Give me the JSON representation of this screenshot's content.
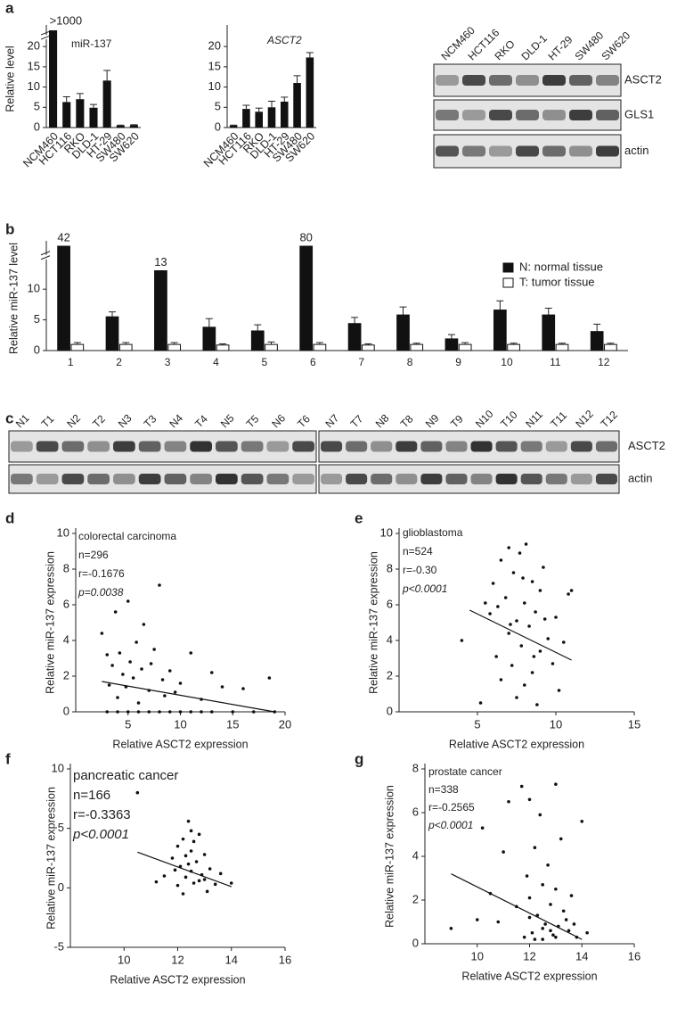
{
  "panel_labels": [
    "a",
    "b",
    "c",
    "d",
    "e",
    "f",
    "g"
  ],
  "chart_data": [
    {
      "type": "bar",
      "y_label": "Relative level",
      "annotations": [
        "miR-137"
      ],
      "categories": [
        "NCM460",
        "HCT116",
        "RKO",
        "DLD-1",
        "HT-29",
        "SW480",
        "SW620"
      ],
      "values": [
        1000,
        6.3,
        7,
        4.9,
        11.6,
        0.5,
        0.6
      ],
      "errors": [
        0,
        1.3,
        1.4,
        0.8,
        2.5,
        0.1,
        0.1
      ],
      "value_labels": [
        ">1000",
        null,
        null,
        null,
        null,
        null,
        null
      ],
      "color": "#111111",
      "ylim": [
        0,
        24
      ],
      "axis_break": 22,
      "yticks": [
        0,
        5,
        10,
        15,
        20
      ]
    },
    {
      "type": "bar",
      "annotations": [
        "ASCT2"
      ],
      "categories": [
        "NCM460",
        "HCT116",
        "RKO",
        "DLD-1",
        "HT-29",
        "SW480",
        "SW620"
      ],
      "values": [
        0.5,
        4.6,
        3.9,
        5,
        6.4,
        11,
        17.3
      ],
      "errors": [
        0.1,
        0.9,
        0.9,
        1.5,
        1.1,
        1.8,
        1.2
      ],
      "color": "#111111",
      "ylim": [
        0,
        24
      ],
      "yticks": [
        0,
        5,
        10,
        15,
        20
      ]
    },
    {
      "type": "grouped_bar",
      "y_label": "Relative miR-137 level",
      "categories": [
        "1",
        "2",
        "3",
        "4",
        "5",
        "6",
        "7",
        "8",
        "9",
        "10",
        "11",
        "12"
      ],
      "series": [
        {
          "name": "N: normal tissue",
          "color": "#111111",
          "values": [
            42,
            5.5,
            13,
            3.8,
            3.2,
            80,
            4.4,
            5.8,
            1.9,
            6.6,
            5.8,
            3.1
          ],
          "errors": [
            0,
            0.8,
            0,
            1.4,
            1,
            0,
            1,
            1.3,
            0.7,
            1.5,
            1.1,
            1.2
          ],
          "value_labels": [
            "42",
            null,
            "13",
            null,
            null,
            "80",
            null,
            null,
            null,
            null,
            null,
            null
          ]
        },
        {
          "name": "T: tumor tissue",
          "color": "#ffffff",
          "values": [
            1,
            1,
            1,
            0.9,
            1,
            1,
            0.9,
            1,
            1,
            1,
            1,
            1
          ],
          "errors": [
            0.3,
            0.3,
            0.3,
            0.2,
            0.4,
            0.3,
            0.2,
            0.2,
            0.3,
            0.2,
            0.2,
            0.2
          ]
        }
      ],
      "ylim": [
        0,
        17
      ],
      "axis_break": 15,
      "yticks": [
        0,
        5,
        10
      ]
    },
    {
      "type": "scatter",
      "x_label": "Relative ASCT2 expression",
      "y_label": "Relative miR-137 expression",
      "annotations": [
        "colorectal carcinoma",
        "n=296",
        "r=-0.1676",
        "p=0.0038"
      ],
      "x": [
        2.5,
        3,
        3.2,
        3.5,
        3.8,
        4,
        4.2,
        4.5,
        4.8,
        5,
        5.2,
        5.5,
        5.8,
        6,
        6.3,
        6.5,
        7,
        7.2,
        7.5,
        8,
        8.3,
        8.5,
        9,
        9.5,
        10,
        11,
        12,
        13,
        14,
        16,
        18.5,
        19,
        3,
        4,
        5,
        6,
        7,
        8,
        9,
        10,
        11,
        12,
        13,
        15,
        17
      ],
      "y": [
        4.4,
        3.2,
        1.5,
        2.6,
        5.6,
        0.8,
        3.3,
        2.1,
        1.4,
        6.2,
        2.8,
        1.9,
        3.9,
        0.5,
        2.4,
        4.9,
        1.2,
        2.7,
        3.5,
        7.1,
        1.8,
        0.9,
        2.3,
        1.1,
        1.6,
        3.3,
        0.7,
        2.2,
        1.4,
        1.3,
        1.9,
        0,
        0,
        0,
        0,
        0,
        0,
        0,
        0,
        0,
        0,
        0,
        0,
        0,
        0
      ],
      "trend": {
        "x": [
          2.5,
          19
        ],
        "y": [
          1.7,
          0
        ]
      },
      "xlim": [
        0,
        20
      ],
      "xticks": [
        5,
        10,
        15,
        20
      ],
      "ylim": [
        0,
        10
      ],
      "yticks": [
        0,
        2,
        4,
        6,
        8,
        10
      ]
    },
    {
      "type": "scatter",
      "x_label": "Relative ASCT2 expression",
      "y_label": "Relative miR-137 expression",
      "annotations": [
        "glioblastoma",
        "n=524",
        "r=-0.30",
        "p<0.0001"
      ],
      "x": [
        4,
        5.2,
        5.8,
        6,
        6.2,
        6.5,
        6.5,
        6.8,
        7,
        7,
        7.2,
        7.3,
        7.5,
        7.5,
        7.7,
        7.8,
        8,
        8,
        8.1,
        8.3,
        8.5,
        8.5,
        8.7,
        8.8,
        9,
        9,
        9.2,
        9.5,
        9.8,
        10,
        10.2,
        10.5,
        10.8,
        11,
        6.3,
        7.1,
        7.9,
        8.6,
        9.3,
        5.5
      ],
      "y": [
        4,
        0.5,
        5.5,
        7.2,
        3.1,
        8.5,
        1.8,
        6.4,
        9.2,
        4.4,
        2.6,
        7.8,
        5.1,
        0.8,
        8.9,
        3.7,
        6.1,
        1.5,
        9.4,
        4.8,
        7.3,
        2.2,
        5.6,
        0.4,
        6.8,
        3.4,
        8.1,
        4.1,
        2.7,
        5.3,
        1.2,
        3.9,
        6.6,
        6.8,
        5.9,
        4.9,
        7.5,
        3.1,
        5.2,
        6.1
      ],
      "trend": {
        "x": [
          4.5,
          11
        ],
        "y": [
          5.7,
          2.9
        ]
      },
      "xlim": [
        0,
        15
      ],
      "xticks": [
        5,
        10,
        15
      ],
      "ylim": [
        0,
        10
      ],
      "yticks": [
        0,
        2,
        4,
        6,
        8,
        10
      ]
    },
    {
      "type": "scatter",
      "x_label": "Relative ASCT2 expression",
      "y_label": "Relative miR-137 expression",
      "annotations": [
        "pancreatic cancer",
        "n=166",
        "r=-0.3363",
        "p<0.0001"
      ],
      "x": [
        10.5,
        11.2,
        11.5,
        11.8,
        12,
        12,
        12.1,
        12.2,
        12.3,
        12.3,
        12.4,
        12.5,
        12.5,
        12.6,
        12.7,
        12.8,
        12.9,
        13,
        13,
        13.2,
        13.4,
        13.6,
        14,
        12.2,
        12.6,
        12.4,
        11.9,
        13.1,
        12.8,
        12.5
      ],
      "y": [
        8,
        0.5,
        1,
        2.5,
        0.2,
        3.5,
        1.8,
        4.1,
        0.9,
        2.7,
        5.6,
        1.4,
        3.1,
        0.4,
        2.2,
        4.5,
        1.1,
        0.7,
        2.8,
        1.6,
        0.3,
        1.2,
        0.4,
        -0.5,
        3.9,
        2,
        1.5,
        -0.3,
        0.6,
        4.8
      ],
      "trend": {
        "x": [
          10.5,
          14
        ],
        "y": [
          3,
          0.1
        ]
      },
      "xlim": [
        8,
        16
      ],
      "xticks": [
        10,
        12,
        14,
        16
      ],
      "ylim": [
        -5,
        10
      ],
      "yticks": [
        -5,
        0,
        5,
        10
      ]
    },
    {
      "type": "scatter",
      "x_label": "Relative ASCT2 expression",
      "y_label": "Relative miR-137 expression",
      "annotations": [
        "prostate cancer",
        "n=338",
        "r=-0.2565",
        "p<0.0001"
      ],
      "x": [
        9,
        10,
        10.2,
        10.5,
        10.8,
        11,
        11.2,
        11.5,
        11.7,
        11.8,
        12,
        12,
        12.1,
        12.2,
        12.3,
        12.4,
        12.5,
        12.5,
        12.6,
        12.7,
        12.8,
        12.9,
        13,
        13,
        13.1,
        13.2,
        13.3,
        13.5,
        13.6,
        13.8,
        14,
        14.2,
        12,
        12.5,
        13,
        11.9,
        13.4,
        12.2,
        12.8,
        13.7
      ],
      "y": [
        0.7,
        1.1,
        5.3,
        2.3,
        1,
        4.2,
        6.5,
        1.7,
        7.2,
        0.3,
        6.6,
        2.1,
        0.5,
        4.4,
        1.3,
        5.9,
        0.2,
        2.7,
        0.9,
        3.6,
        1.8,
        0.4,
        7.3,
        2.5,
        0.8,
        4.8,
        1.5,
        0.6,
        2.2,
        0.3,
        5.6,
        0.5,
        1.2,
        0.7,
        0.3,
        3.1,
        1.1,
        0.2,
        0.6,
        0.9
      ],
      "trend": {
        "x": [
          9,
          14
        ],
        "y": [
          3.2,
          0.2
        ]
      },
      "xlim": [
        8,
        16
      ],
      "xticks": [
        10,
        12,
        14,
        16
      ],
      "ylim": [
        0,
        8
      ],
      "yticks": [
        0,
        2,
        4,
        6,
        8
      ]
    }
  ],
  "blots": [
    {
      "groups": [
        [
          "NCM460",
          "HCT116",
          "RKO",
          "DLD-1",
          "HT-29",
          "SW480",
          "SW620"
        ]
      ],
      "rows": [
        "ASCT2",
        "GLS1",
        "actin"
      ]
    },
    {
      "groups": [
        [
          "N1",
          "T1",
          "N2",
          "T2",
          "N3",
          "T3",
          "N4",
          "T4",
          "N5",
          "T5",
          "N6",
          "T6"
        ],
        [
          "N7",
          "T7",
          "N8",
          "T8",
          "N9",
          "T9",
          "N10",
          "T10",
          "N11",
          "T11",
          "N12",
          "T12"
        ]
      ],
      "rows": [
        "ASCT2",
        "actin"
      ]
    }
  ]
}
